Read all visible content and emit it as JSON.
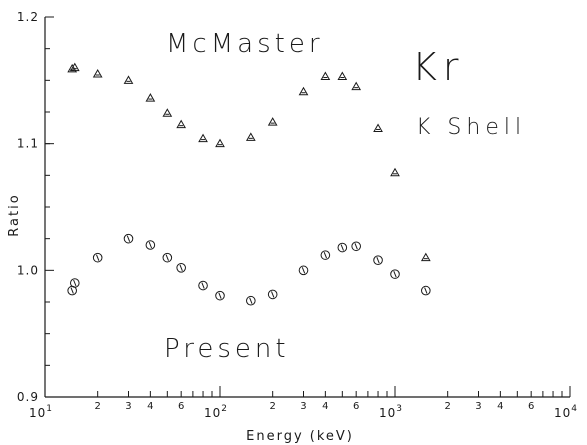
{
  "chart_data": {
    "type": "scatter",
    "xscale": "log",
    "xlim": [
      10,
      10000
    ],
    "ylim": [
      0.9,
      1.2
    ],
    "xlabel": "Energy (keV)",
    "ylabel": "Ratio",
    "grid": false,
    "legend": "none",
    "y_ticks": [
      {
        "value": 0.9,
        "label": "0.9"
      },
      {
        "value": 1.0,
        "label": "1.0"
      },
      {
        "value": 1.1,
        "label": "1.1"
      },
      {
        "value": 1.2,
        "label": "1.2"
      }
    ],
    "x_ticks_major": [
      {
        "value": 10,
        "base": "10",
        "exp": "1"
      },
      {
        "value": 100,
        "base": "10",
        "exp": "2"
      },
      {
        "value": 1000,
        "base": "10",
        "exp": "3"
      },
      {
        "value": 10000,
        "base": "10",
        "exp": "4"
      }
    ],
    "x_ticks_minor": [
      {
        "value": 20,
        "label": "2"
      },
      {
        "value": 30,
        "label": "3"
      },
      {
        "value": 40,
        "label": "4"
      },
      {
        "value": 60,
        "label": "6"
      },
      {
        "value": 200,
        "label": "2"
      },
      {
        "value": 300,
        "label": "3"
      },
      {
        "value": 400,
        "label": "4"
      },
      {
        "value": 600,
        "label": "6"
      },
      {
        "value": 2000,
        "label": "2"
      },
      {
        "value": 3000,
        "label": "3"
      },
      {
        "value": 4000,
        "label": "4"
      },
      {
        "value": 6000,
        "label": "6"
      }
    ],
    "annotations": {
      "series_top": "McMaster",
      "series_bottom": "Present",
      "element": "Kr",
      "shell": "K Shell"
    },
    "series": [
      {
        "marker": "triangle",
        "x": [
          14.3,
          14.8,
          20,
          30,
          40,
          50,
          60,
          80,
          100,
          150,
          200,
          300,
          400,
          500,
          600,
          800,
          1000,
          1500
        ],
        "y": [
          1.159,
          1.16,
          1.155,
          1.15,
          1.136,
          1.124,
          1.115,
          1.104,
          1.1,
          1.105,
          1.117,
          1.141,
          1.153,
          1.153,
          1.145,
          1.112,
          1.077,
          1.01
        ]
      },
      {
        "marker": "circle",
        "x": [
          14.3,
          14.8,
          20,
          30,
          40,
          50,
          60,
          80,
          100,
          150,
          200,
          300,
          400,
          500,
          600,
          800,
          1000,
          1500
        ],
        "y": [
          0.984,
          0.99,
          1.01,
          1.025,
          1.02,
          1.01,
          1.002,
          0.988,
          0.98,
          0.976,
          0.981,
          1.0,
          1.012,
          1.018,
          1.019,
          1.008,
          0.997,
          0.984
        ]
      }
    ]
  }
}
